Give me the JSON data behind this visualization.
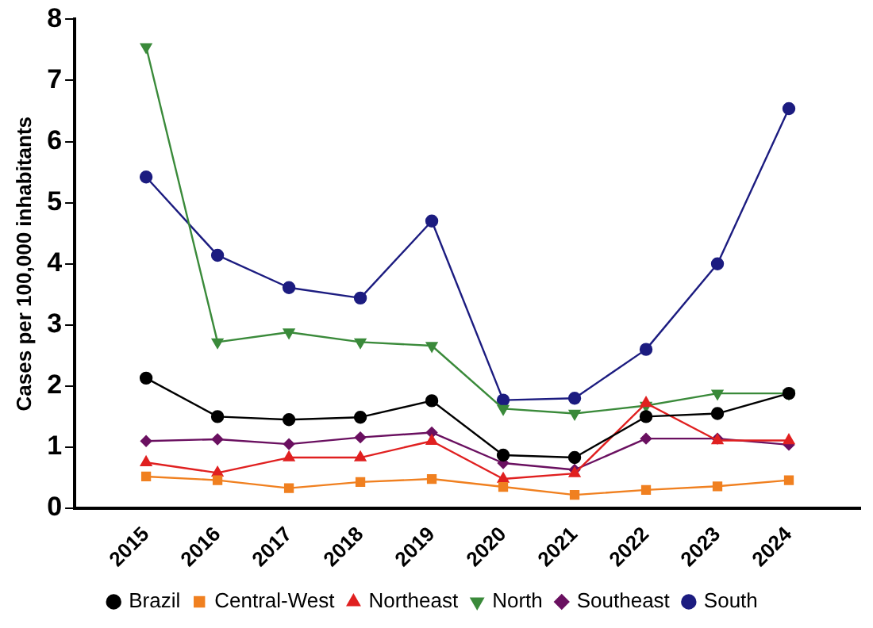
{
  "chart_data": {
    "type": "line",
    "ylabel": "Cases per 100,000 inhabitants",
    "x": [
      2015,
      2016,
      2017,
      2018,
      2019,
      2020,
      2021,
      2022,
      2023,
      2024
    ],
    "xlim": [
      2014,
      2025
    ],
    "xticks": [
      2015,
      2016,
      2017,
      2018,
      2019,
      2020,
      2021,
      2022,
      2023,
      2024
    ],
    "ylim": [
      0,
      8
    ],
    "yticks": [
      0,
      1,
      2,
      3,
      4,
      5,
      6,
      7,
      8
    ],
    "grid": false,
    "legend": "bottom",
    "series": [
      {
        "name": "Brazil",
        "color": "#000000",
        "marker": "circle",
        "values": [
          2.13,
          1.5,
          1.45,
          1.49,
          1.76,
          0.87,
          0.83,
          1.5,
          1.55,
          1.88
        ]
      },
      {
        "name": "Central-West",
        "color": "#f08020",
        "marker": "square",
        "values": [
          0.52,
          0.46,
          0.33,
          0.43,
          0.48,
          0.35,
          0.22,
          0.3,
          0.36,
          0.46
        ]
      },
      {
        "name": "Northeast",
        "color": "#e02020",
        "marker": "triangle",
        "values": [
          0.75,
          0.58,
          0.83,
          0.83,
          1.1,
          0.48,
          0.57,
          1.72,
          1.11,
          1.11
        ]
      },
      {
        "name": "North",
        "color": "#3a8a3a",
        "marker": "triangle-down",
        "values": [
          7.55,
          2.72,
          2.88,
          2.72,
          2.66,
          1.63,
          1.55,
          1.68,
          1.88,
          1.88
        ]
      },
      {
        "name": "Southeast",
        "color": "#6a1060",
        "marker": "diamond",
        "values": [
          1.1,
          1.13,
          1.05,
          1.16,
          1.24,
          0.74,
          0.63,
          1.14,
          1.14,
          1.04
        ]
      },
      {
        "name": "South",
        "color": "#1c1c80",
        "marker": "circle",
        "values": [
          5.42,
          4.14,
          3.61,
          3.44,
          4.7,
          1.77,
          1.8,
          2.6,
          4.0,
          6.54
        ]
      }
    ]
  }
}
